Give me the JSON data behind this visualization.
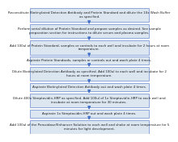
{
  "steps": [
    "Reconstitute Biotinylated Detection Antibody and Protein Standard and dilute the 10x Wash Buffer\nas specified.",
    "Perform serial dilution of Protein Standard and prepare samples as desired. See sample\npreparation section for instructions to dilute serum and plasma samples.",
    "Add 100ul of Protein Standard, samples or controls to each well and incubate for 2 hours at room\ntemperature.",
    "Aspirate Protein Standards, samples or controls out and wash plate 4 times.",
    "Dilute Biotinylated Detection Antibody as specified. Add 100ul to each well and incubate for 2\nhours at room temperature.",
    "Aspirate Biotinylated Detection Antibody out and wash plate 4 times.",
    "Dilute 400x Streptavidin-HRP as specified. Add 100ul of 1x Streptavidin-HRP to each well and\nincubate at room temperature for 30 minutes.",
    "Aspirate 1x Streptavidin-HRP out and wash plate 4 times.",
    "Add 100ul of the Peroxidase/Enhancer Solution to each well and shake at room temperature for 5\nminutes for light development."
  ],
  "step_lines": [
    2,
    2,
    2,
    1,
    2,
    1,
    2,
    1,
    2
  ],
  "box_facecolor": "#dce6f1",
  "box_edgecolor": "#4472c4",
  "arrow_color": "#4472c4",
  "text_color": "#1f1f1f",
  "bg_color": "#FFFFFF",
  "fontsize": 2.9,
  "linewidth": 0.4
}
